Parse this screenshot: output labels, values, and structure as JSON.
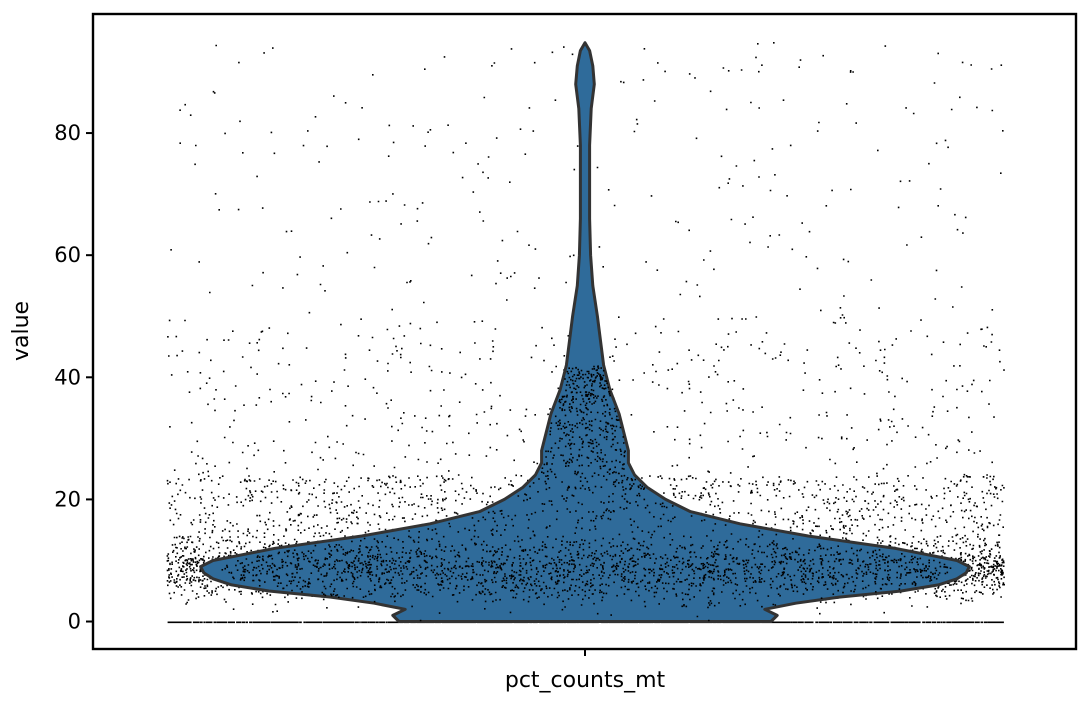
{
  "chart_data": {
    "type": "violin",
    "categories": [
      "pct_counts_mt"
    ],
    "xlabel": "pct_counts_mt",
    "ylabel": "value",
    "yticks": [
      0,
      20,
      40,
      60,
      80
    ],
    "ytick_labels": [
      "0",
      "20",
      "40",
      "60",
      "80"
    ],
    "ylim": [
      -4.5,
      99.5
    ],
    "grid": false,
    "violin": {
      "category": "pct_counts_mt",
      "color": "#2f6b9a",
      "edge_color": "#333333",
      "profile": [
        {
          "y": 0,
          "half_width": 0.6
        },
        {
          "y": 1,
          "half_width": 0.62
        },
        {
          "y": 2,
          "half_width": 0.58
        },
        {
          "y": 3,
          "half_width": 0.68
        },
        {
          "y": 4,
          "half_width": 0.82
        },
        {
          "y": 5,
          "half_width": 1.02
        },
        {
          "y": 6,
          "half_width": 1.14
        },
        {
          "y": 7,
          "half_width": 1.2
        },
        {
          "y": 8,
          "half_width": 1.23
        },
        {
          "y": 9,
          "half_width": 1.24
        },
        {
          "y": 10,
          "half_width": 1.2
        },
        {
          "y": 12,
          "half_width": 1.0
        },
        {
          "y": 14,
          "half_width": 0.72
        },
        {
          "y": 16,
          "half_width": 0.5
        },
        {
          "y": 18,
          "half_width": 0.34
        },
        {
          "y": 20,
          "half_width": 0.26
        },
        {
          "y": 22,
          "half_width": 0.2
        },
        {
          "y": 24,
          "half_width": 0.16
        },
        {
          "y": 26,
          "half_width": 0.14
        },
        {
          "y": 28,
          "half_width": 0.14
        },
        {
          "y": 30,
          "half_width": 0.13
        },
        {
          "y": 34,
          "half_width": 0.11
        },
        {
          "y": 38,
          "half_width": 0.08
        },
        {
          "y": 42,
          "half_width": 0.06
        },
        {
          "y": 46,
          "half_width": 0.05
        },
        {
          "y": 50,
          "half_width": 0.04
        },
        {
          "y": 55,
          "half_width": 0.025
        },
        {
          "y": 60,
          "half_width": 0.018
        },
        {
          "y": 66,
          "half_width": 0.015
        },
        {
          "y": 72,
          "half_width": 0.015
        },
        {
          "y": 78,
          "half_width": 0.015
        },
        {
          "y": 84,
          "half_width": 0.02
        },
        {
          "y": 88,
          "half_width": 0.03
        },
        {
          "y": 91,
          "half_width": 0.025
        },
        {
          "y": 93.5,
          "half_width": 0.015
        },
        {
          "y": 94.8,
          "half_width": 0.0
        }
      ]
    },
    "points": {
      "color": "#000000",
      "x_jitter_extent": 1.35,
      "y_range": [
        0,
        95
      ],
      "dense_band_center": 8.5,
      "zero_line_present": true
    }
  }
}
